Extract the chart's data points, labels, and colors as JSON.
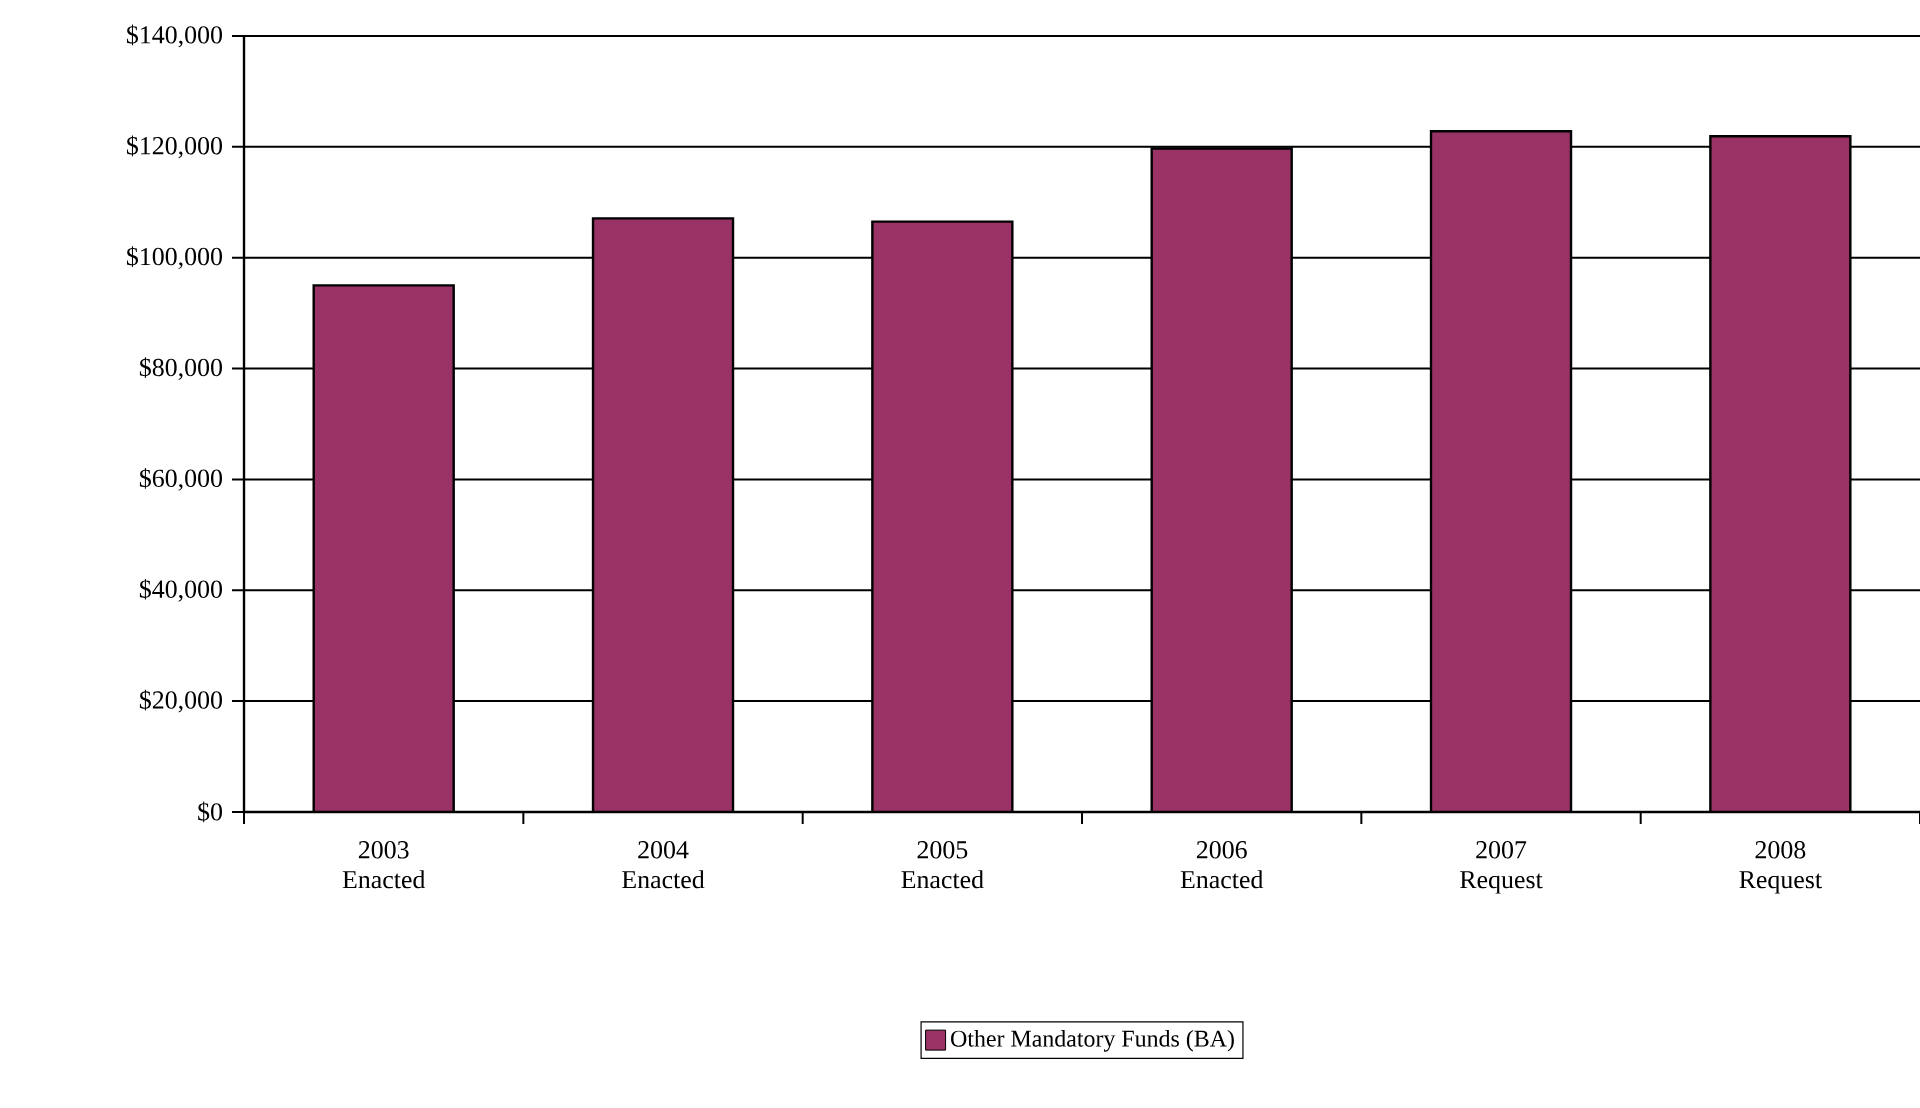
{
  "chart_data": {
    "type": "bar",
    "categories": [
      "2003 Enacted",
      "2004 Enacted",
      "2005 Enacted",
      "2006 Enacted",
      "2007 Request",
      "2008 Request"
    ],
    "series": [
      {
        "name": "Other Mandatory Funds (BA)",
        "color": "#993366",
        "values": [
          95000,
          107100,
          106500,
          119700,
          122800,
          121900
        ]
      }
    ],
    "ylim": [
      0,
      140000
    ],
    "yticks": [
      {
        "value": 0,
        "label": "$0"
      },
      {
        "value": 20000,
        "label": "$20,000"
      },
      {
        "value": 40000,
        "label": "$40,000"
      },
      {
        "value": 60000,
        "label": "$60,000"
      },
      {
        "value": 80000,
        "label": "$80,000"
      },
      {
        "value": 100000,
        "label": "$100,000"
      },
      {
        "value": 120000,
        "label": "$120,000"
      },
      {
        "value": 140000,
        "label": "$140,000"
      }
    ],
    "grid": "y",
    "legend": "bottom"
  }
}
